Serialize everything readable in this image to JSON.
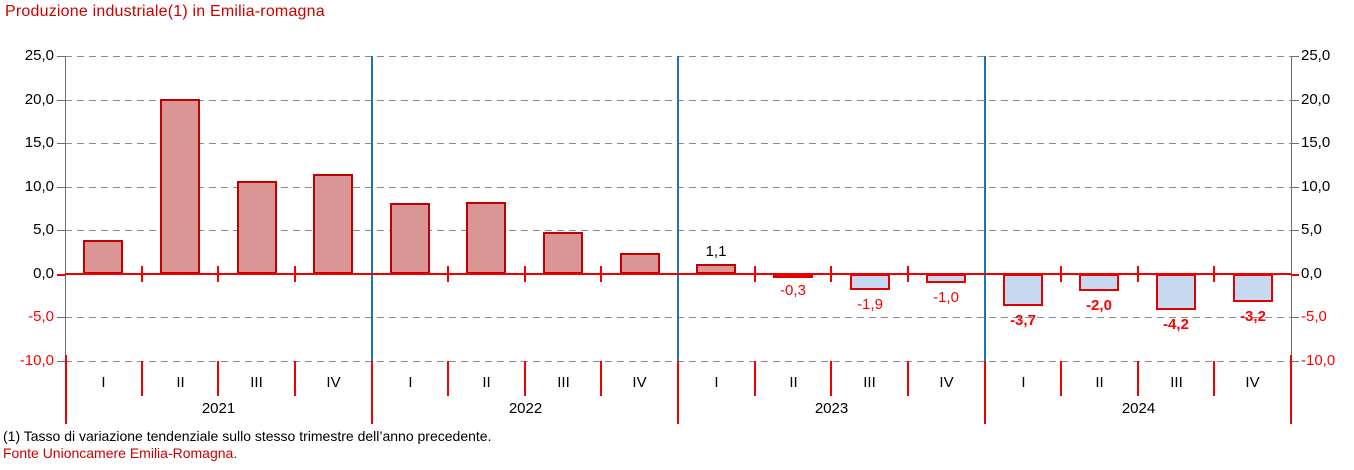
{
  "chart_data": {
    "type": "bar",
    "title": "Produzione industriale(1) in Emilia-romagna",
    "ylim": [
      -10,
      25
    ],
    "grid": "horizontal-dashed",
    "axis_sides": "both",
    "y_ticks": [
      {
        "value": 25,
        "label": "25,0"
      },
      {
        "value": 20,
        "label": "20,0"
      },
      {
        "value": 15,
        "label": "15,0"
      },
      {
        "value": 10,
        "label": "10,0"
      },
      {
        "value": 5,
        "label": "5,0"
      },
      {
        "value": 0,
        "label": "0,0"
      },
      {
        "value": -5,
        "label": "-5,0"
      },
      {
        "value": -10,
        "label": "-10,0"
      }
    ],
    "years": [
      "2021",
      "2022",
      "2023",
      "2024"
    ],
    "quarters_per_year": [
      "I",
      "II",
      "III",
      "IV"
    ],
    "points": [
      {
        "year": "2021",
        "quarter": "I",
        "value": 3.9,
        "label": null,
        "label_bold": false
      },
      {
        "year": "2021",
        "quarter": "II",
        "value": 20.1,
        "label": null,
        "label_bold": false
      },
      {
        "year": "2021",
        "quarter": "III",
        "value": 10.7,
        "label": null,
        "label_bold": false
      },
      {
        "year": "2021",
        "quarter": "IV",
        "value": 11.5,
        "label": null,
        "label_bold": false
      },
      {
        "year": "2022",
        "quarter": "I",
        "value": 8.1,
        "label": null,
        "label_bold": false
      },
      {
        "year": "2022",
        "quarter": "II",
        "value": 8.3,
        "label": null,
        "label_bold": false
      },
      {
        "year": "2022",
        "quarter": "III",
        "value": 4.8,
        "label": null,
        "label_bold": false
      },
      {
        "year": "2022",
        "quarter": "IV",
        "value": 2.4,
        "label": null,
        "label_bold": false
      },
      {
        "year": "2023",
        "quarter": "I",
        "value": 1.1,
        "label": "1,1",
        "label_bold": false
      },
      {
        "year": "2023",
        "quarter": "II",
        "value": -0.3,
        "label": "-0,3",
        "label_bold": false
      },
      {
        "year": "2023",
        "quarter": "III",
        "value": -1.9,
        "label": "-1,9",
        "label_bold": false
      },
      {
        "year": "2023",
        "quarter": "IV",
        "value": -1.0,
        "label": "-1,0",
        "label_bold": false
      },
      {
        "year": "2024",
        "quarter": "I",
        "value": -3.7,
        "label": "-3,7",
        "label_bold": true
      },
      {
        "year": "2024",
        "quarter": "II",
        "value": -2.0,
        "label": "-2,0",
        "label_bold": true
      },
      {
        "year": "2024",
        "quarter": "III",
        "value": -4.2,
        "label": "-4,2",
        "label_bold": true
      },
      {
        "year": "2024",
        "quarter": "IV",
        "value": -3.2,
        "label": "-3,2",
        "label_bold": true
      }
    ],
    "colors": {
      "title": "#CC0000",
      "positive_fill": "#D99694",
      "positive_border": "#C00000",
      "negative_fill": "#C6D9F1",
      "negative_border": "#E00000",
      "zero_line": "#F00000",
      "gridline": "#8C8C8C",
      "axis": "#6E6E6E",
      "year_separator": "#1B73B8",
      "positive_label": "#000000",
      "negative_label": "#FF0000",
      "tick_label_negative": "#FF0000",
      "source_text": "#CC0000"
    }
  },
  "footnotes": {
    "line1": "(1) Tasso di variazione tendenziale sullo stesso trimestre dell’anno precedente.",
    "line2": "Fonte Unioncamere Emilia-Romagna."
  }
}
